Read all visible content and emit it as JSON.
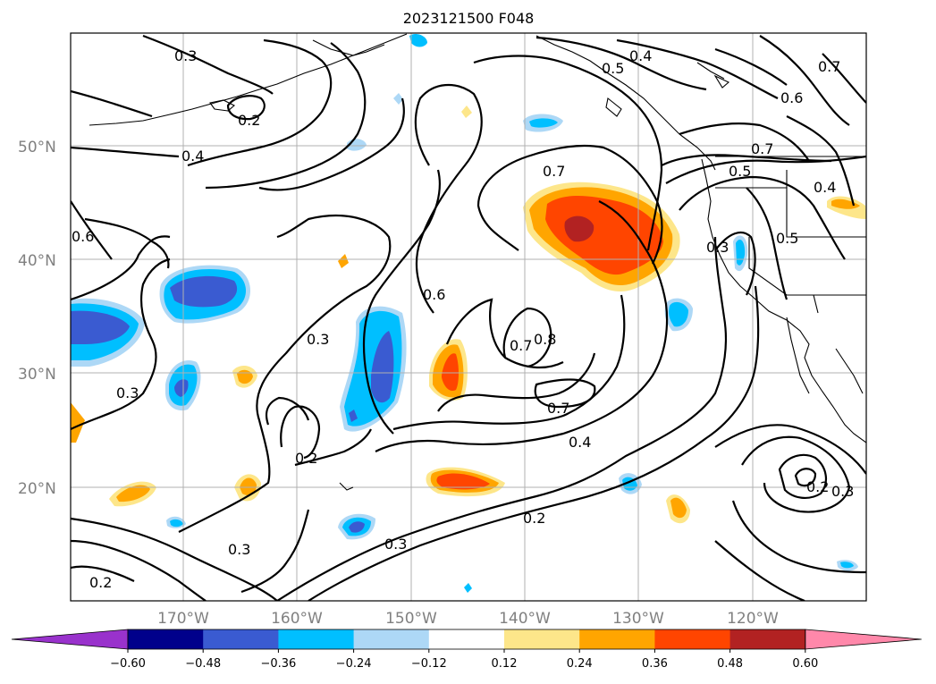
{
  "title": "2023121500 F048",
  "lat_labels": [
    "50°N",
    "40°N",
    "30°N",
    "20°N"
  ],
  "lon_labels": [
    "170°W",
    "160°W",
    "150°W",
    "140°W",
    "130°W",
    "120°W"
  ],
  "colorbar": {
    "levels": [
      "−0.60",
      "−0.48",
      "−0.36",
      "−0.24",
      "−0.12",
      "0.12",
      "0.24",
      "0.36",
      "0.48",
      "0.60"
    ],
    "colors": [
      "#9932cc",
      "#00008b",
      "#3a5bd1",
      "#00bfff",
      "#add8f6",
      "#ffffff",
      "#fde68a",
      "#ffa500",
      "#ff4500",
      "#b22222",
      "#ff88aa"
    ]
  },
  "contour_labels": [
    "0.3",
    "0.2",
    "0.4",
    "0.4",
    "0.5",
    "0.6",
    "0.7",
    "0.6",
    "0.7",
    "0.5",
    "0.4",
    "0.3",
    "0.5",
    "0.7",
    "0.6",
    "0.3",
    "0.2",
    "0.3",
    "0.4",
    "0.7",
    "0.8",
    "0.7",
    "0.3",
    "0.3",
    "0.2",
    "0.2",
    "0.2",
    "0.3"
  ]
}
